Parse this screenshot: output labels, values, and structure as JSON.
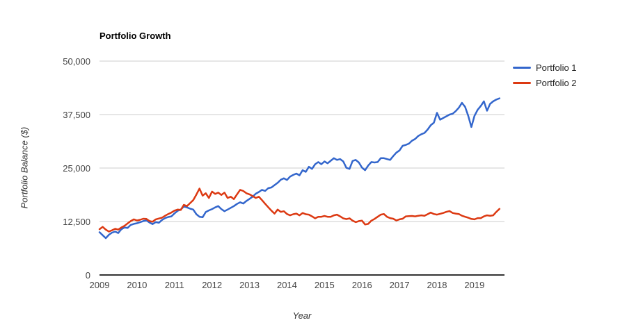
{
  "chart": {
    "title": "Portfolio Growth",
    "x_axis_title": "Year",
    "y_axis_title": "Portfolio Balance ($)",
    "legend": [
      {
        "label": "Portfolio 1",
        "color": "#3366cc"
      },
      {
        "label": "Portfolio 2",
        "color": "#dc3912"
      }
    ],
    "colors": {
      "gridline": "#cccccc",
      "axis_line": "#333333",
      "tick_text": "#444444",
      "series1": "#3366cc",
      "series2": "#dc3912"
    }
  },
  "chart_data": {
    "type": "line",
    "title": "Portfolio Growth",
    "xlabel": "Year",
    "ylabel": "Portfolio Balance ($)",
    "grid": true,
    "legend_position": "right",
    "xlim": [
      2009,
      2019.8
    ],
    "ylim": [
      0,
      50000
    ],
    "x_tick_values": [
      2009,
      2010,
      2011,
      2012,
      2013,
      2014,
      2015,
      2016,
      2017,
      2018,
      2019
    ],
    "x_tick_labels": [
      "2009",
      "2010",
      "2011",
      "2012",
      "2013",
      "2014",
      "2015",
      "2016",
      "2017",
      "2018",
      "2019"
    ],
    "y_tick_values": [
      0,
      12500,
      25000,
      37500,
      50000
    ],
    "y_tick_labels": [
      "0",
      "12,500",
      "25,000",
      "37,500",
      "50,000"
    ],
    "x_start": 2009.0,
    "x_step": 0.0833333,
    "series": [
      {
        "name": "Portfolio 1",
        "color": "#3366cc",
        "values": [
          10000,
          9300,
          8600,
          9400,
          9900,
          10150,
          9800,
          10700,
          11100,
          11000,
          11700,
          11950,
          12100,
          12350,
          12600,
          12750,
          12250,
          11900,
          12350,
          12200,
          12850,
          13300,
          13550,
          13700,
          14400,
          15000,
          15300,
          16000,
          15800,
          15500,
          15300,
          14200,
          13600,
          13500,
          14700,
          15100,
          15400,
          15800,
          16100,
          15400,
          14900,
          15300,
          15700,
          16100,
          16600,
          17000,
          16700,
          17300,
          17800,
          18300,
          19000,
          19400,
          19900,
          19650,
          20300,
          20450,
          21000,
          21550,
          22250,
          22600,
          22200,
          23000,
          23400,
          23700,
          23300,
          24500,
          24100,
          25300,
          24800,
          25900,
          26400,
          25900,
          26550,
          26100,
          26700,
          27300,
          26900,
          27100,
          26550,
          25050,
          24800,
          26650,
          26900,
          26300,
          25100,
          24500,
          25600,
          26400,
          26300,
          26400,
          27300,
          27300,
          27100,
          26900,
          27800,
          28600,
          29100,
          30200,
          30400,
          30700,
          31400,
          31800,
          32500,
          32900,
          33200,
          34000,
          35000,
          35600,
          37900,
          36300,
          36700,
          37100,
          37500,
          37700,
          38300,
          39100,
          40250,
          39300,
          37200,
          34600,
          37200,
          38600,
          39500,
          40600,
          38400,
          40000,
          40600,
          41000,
          41300
        ]
      },
      {
        "name": "Portfolio 2",
        "color": "#dc3912",
        "values": [
          10700,
          11250,
          10600,
          10150,
          10450,
          10800,
          10600,
          11100,
          11500,
          12050,
          12600,
          13000,
          12750,
          12900,
          13150,
          13100,
          12600,
          12450,
          13000,
          13200,
          13400,
          13850,
          14250,
          14600,
          15050,
          15300,
          15200,
          16400,
          16100,
          16800,
          17500,
          18800,
          20200,
          18550,
          19100,
          18000,
          19500,
          18950,
          19250,
          18700,
          19250,
          18000,
          18300,
          17750,
          18850,
          19900,
          19650,
          19100,
          18850,
          18450,
          18000,
          18300,
          17500,
          16650,
          15850,
          15050,
          14350,
          15300,
          14750,
          14900,
          14250,
          13950,
          14200,
          14350,
          13950,
          14500,
          14200,
          14100,
          13700,
          13250,
          13600,
          13600,
          13800,
          13600,
          13600,
          13950,
          14100,
          13700,
          13250,
          13050,
          13250,
          12700,
          12350,
          12600,
          12700,
          11800,
          11950,
          12700,
          13100,
          13600,
          14100,
          14250,
          13600,
          13300,
          13150,
          12750,
          13000,
          13150,
          13700,
          13750,
          13800,
          13700,
          13850,
          13950,
          13850,
          14200,
          14600,
          14250,
          14100,
          14300,
          14500,
          14750,
          14950,
          14500,
          14350,
          14250,
          13850,
          13600,
          13400,
          13100,
          13000,
          13300,
          13300,
          13700,
          13950,
          13850,
          13950,
          14750,
          15450
        ]
      }
    ]
  }
}
